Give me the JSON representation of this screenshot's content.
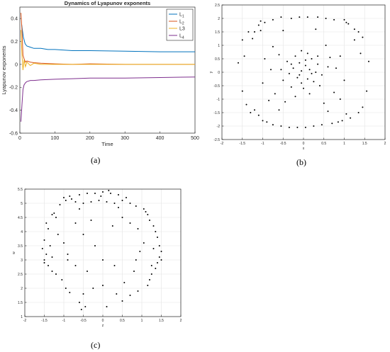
{
  "chart_data": [
    {
      "id": "a",
      "type": "line",
      "title": "Dynamics of Lyapunov exponents",
      "xlabel": "Time",
      "ylabel": "Lyapunov exponents",
      "xlim": [
        0,
        500
      ],
      "ylim": [
        -0.6,
        0.5
      ],
      "xticks": [
        0,
        100,
        200,
        300,
        400,
        500
      ],
      "yticks": [
        -0.6,
        -0.4,
        -0.2,
        0,
        0.2,
        0.4
      ],
      "grid": false,
      "legend_position": "top-right",
      "series": [
        {
          "name": "L",
          "sub": "1",
          "color": "#0072bd",
          "x": [
            5,
            10,
            15,
            20,
            30,
            40,
            60,
            80,
            100,
            150,
            200,
            300,
            400,
            500
          ],
          "y": [
            0.35,
            0.24,
            0.18,
            0.16,
            0.15,
            0.14,
            0.14,
            0.13,
            0.13,
            0.12,
            0.12,
            0.115,
            0.11,
            0.11
          ]
        },
        {
          "name": "L",
          "sub": "2",
          "color": "#d95319",
          "x": [
            3,
            6,
            9,
            12,
            16,
            20,
            30,
            40,
            60,
            100,
            150,
            200,
            300,
            400,
            500
          ],
          "y": [
            0.45,
            0.3,
            0.08,
            0.05,
            0.02,
            0.03,
            0.02,
            0.015,
            0.01,
            0.005,
            0.0,
            0.005,
            0.0,
            0.0,
            0.0
          ]
        },
        {
          "name": "L3",
          "sub": "",
          "color": "#edb120",
          "x": [
            3,
            6,
            9,
            12,
            16,
            20,
            30,
            40,
            60,
            100,
            150,
            200,
            300,
            400,
            500
          ],
          "y": [
            0.3,
            0.08,
            -0.05,
            0.04,
            -0.02,
            0.02,
            -0.01,
            0.01,
            0.0,
            0.0,
            0.0,
            0.0,
            0.0,
            0.0,
            0.0
          ]
        },
        {
          "name": "L",
          "sub": "4",
          "color": "#7e2f8e",
          "x": [
            3,
            6,
            9,
            12,
            16,
            20,
            30,
            40,
            60,
            100,
            150,
            200,
            300,
            400,
            500
          ],
          "y": [
            -0.5,
            -0.35,
            -0.22,
            -0.18,
            -0.16,
            -0.15,
            -0.14,
            -0.14,
            -0.135,
            -0.13,
            -0.125,
            -0.12,
            -0.12,
            -0.115,
            -0.11
          ]
        }
      ]
    },
    {
      "id": "b",
      "type": "scatter",
      "xlabel": "x",
      "ylabel": "y",
      "xlim": [
        -2,
        2
      ],
      "ylim": [
        -2.5,
        2.5
      ],
      "xticks": [
        -2,
        -1.5,
        -1,
        -0.5,
        0,
        0.5,
        1,
        1.5,
        2
      ],
      "yticks": [
        -2.5,
        -2,
        -1.5,
        -1,
        -0.5,
        0,
        0.5,
        1,
        1.5,
        2,
        2.5
      ],
      "grid": true,
      "points": [
        [
          -0.55,
          2.05
        ],
        [
          -0.3,
          2.0
        ],
        [
          -0.1,
          2.05
        ],
        [
          0.1,
          2.05
        ],
        [
          0.35,
          2.05
        ],
        [
          0.55,
          2.0
        ],
        [
          -0.75,
          1.95
        ],
        [
          0.75,
          1.95
        ],
        [
          -1.05,
          1.9
        ],
        [
          -0.95,
          1.85
        ],
        [
          -1.1,
          1.75
        ],
        [
          1.0,
          1.95
        ],
        [
          1.05,
          1.85
        ],
        [
          1.1,
          1.8
        ],
        [
          -1.2,
          1.5
        ],
        [
          -1.35,
          1.5
        ],
        [
          -1.05,
          1.55
        ],
        [
          -0.5,
          1.55
        ],
        [
          0.3,
          1.6
        ],
        [
          1.25,
          1.6
        ],
        [
          1.35,
          1.5
        ],
        [
          1.45,
          1.3
        ],
        [
          -1.5,
          1.2
        ],
        [
          -0.75,
          0.95
        ],
        [
          0.55,
          1.0
        ],
        [
          -1.6,
          0.35
        ],
        [
          1.6,
          0.4
        ],
        [
          -0.2,
          0.6
        ],
        [
          0.1,
          0.7
        ],
        [
          -0.05,
          0.8
        ],
        [
          0.2,
          0.5
        ],
        [
          -0.4,
          0.4
        ],
        [
          0.35,
          0.3
        ],
        [
          -0.1,
          0.35
        ],
        [
          0.05,
          0.25
        ],
        [
          -0.25,
          0.15
        ],
        [
          0.15,
          0.1
        ],
        [
          -0.05,
          0.05
        ],
        [
          0.3,
          0.0
        ],
        [
          -0.35,
          -0.05
        ],
        [
          0.45,
          -0.1
        ],
        [
          -0.15,
          -0.2
        ],
        [
          0.1,
          -0.25
        ],
        [
          -0.5,
          -0.3
        ],
        [
          0.25,
          -0.35
        ],
        [
          -0.05,
          -0.4
        ],
        [
          0.4,
          -0.5
        ],
        [
          -0.3,
          -0.55
        ],
        [
          0.0,
          -0.6
        ],
        [
          -0.8,
          0.1
        ],
        [
          0.8,
          0.15
        ],
        [
          -1.0,
          -0.4
        ],
        [
          1.0,
          -0.3
        ],
        [
          -1.5,
          -0.7
        ],
        [
          1.55,
          -0.7
        ],
        [
          -1.4,
          -1.2
        ],
        [
          1.45,
          -1.3
        ],
        [
          -1.3,
          -1.5
        ],
        [
          1.35,
          -1.5
        ],
        [
          -1.1,
          -1.6
        ],
        [
          1.15,
          -1.7
        ],
        [
          -1.0,
          -1.8
        ],
        [
          0.95,
          -1.8
        ],
        [
          -0.9,
          -1.85
        ],
        [
          0.85,
          -1.85
        ],
        [
          -0.75,
          -1.95
        ],
        [
          0.7,
          -1.9
        ],
        [
          -0.55,
          -2.0
        ],
        [
          -0.35,
          -2.05
        ],
        [
          -0.15,
          -2.05
        ],
        [
          0.05,
          -2.05
        ],
        [
          0.25,
          -2.0
        ],
        [
          0.45,
          -1.95
        ],
        [
          1.05,
          -1.55
        ],
        [
          -1.2,
          -1.4
        ],
        [
          0.6,
          -1.45
        ],
        [
          -0.6,
          -1.4
        ],
        [
          0.75,
          -0.75
        ],
        [
          -0.7,
          -0.8
        ],
        [
          1.25,
          1.2
        ],
        [
          -1.25,
          1.25
        ],
        [
          0.65,
          0.55
        ],
        [
          -0.6,
          0.65
        ],
        [
          0.9,
          0.6
        ],
        [
          -0.95,
          0.5
        ],
        [
          0.15,
          -0.8
        ],
        [
          -0.2,
          -0.9
        ],
        [
          0.5,
          -1.15
        ],
        [
          -0.45,
          -1.1
        ],
        [
          0.05,
          0.45
        ],
        [
          -0.1,
          -0.1
        ],
        [
          0.2,
          -0.05
        ],
        [
          -0.3,
          0.3
        ],
        [
          0.35,
          0.6
        ],
        [
          0.6,
          0.2
        ],
        [
          -0.55,
          0.1
        ],
        [
          0.9,
          -1.0
        ],
        [
          -0.85,
          -1.05
        ],
        [
          1.4,
          0.7
        ],
        [
          -1.45,
          0.6
        ]
      ]
    },
    {
      "id": "c",
      "type": "scatter",
      "xlabel": "z",
      "ylabel": "w",
      "xlim": [
        -2,
        2
      ],
      "ylim": [
        1,
        5.5
      ],
      "xticks": [
        -2,
        -1.5,
        -1,
        -0.5,
        0,
        0.5,
        1,
        1.5,
        2
      ],
      "yticks": [
        1,
        1.5,
        2,
        2.5,
        3,
        3.5,
        4,
        4.5,
        5,
        5.5
      ],
      "grid": true,
      "points": [
        [
          -1.0,
          5.2
        ],
        [
          -0.85,
          5.25
        ],
        [
          -0.6,
          5.3
        ],
        [
          -0.4,
          5.35
        ],
        [
          -0.2,
          5.35
        ],
        [
          0.0,
          5.4
        ],
        [
          0.2,
          5.35
        ],
        [
          0.4,
          5.3
        ],
        [
          -0.95,
          5.1
        ],
        [
          -0.7,
          5.05
        ],
        [
          -0.5,
          5.0
        ],
        [
          -0.3,
          5.05
        ],
        [
          -0.1,
          5.1
        ],
        [
          0.1,
          5.05
        ],
        [
          0.3,
          5.0
        ],
        [
          0.5,
          5.1
        ],
        [
          0.7,
          5.0
        ],
        [
          0.85,
          4.9
        ],
        [
          -1.1,
          4.95
        ],
        [
          -1.3,
          4.6
        ],
        [
          -1.2,
          4.5
        ],
        [
          -1.45,
          4.3
        ],
        [
          -1.4,
          4.1
        ],
        [
          1.05,
          4.8
        ],
        [
          1.15,
          4.6
        ],
        [
          1.2,
          4.4
        ],
        [
          1.3,
          4.2
        ],
        [
          1.35,
          4.0
        ],
        [
          -1.5,
          3.7
        ],
        [
          -1.55,
          3.4
        ],
        [
          -1.45,
          3.2
        ],
        [
          -1.5,
          3.0
        ],
        [
          -1.4,
          2.8
        ],
        [
          -1.3,
          2.6
        ],
        [
          1.4,
          3.8
        ],
        [
          1.45,
          3.5
        ],
        [
          1.5,
          3.3
        ],
        [
          1.45,
          3.1
        ],
        [
          1.4,
          2.9
        ],
        [
          1.35,
          2.7
        ],
        [
          1.25,
          2.5
        ],
        [
          1.2,
          2.3
        ],
        [
          1.15,
          2.1
        ],
        [
          -1.2,
          2.5
        ],
        [
          -1.05,
          2.3
        ],
        [
          -0.95,
          2.0
        ],
        [
          -0.85,
          1.85
        ],
        [
          -0.5,
          1.8
        ],
        [
          -0.6,
          1.5
        ],
        [
          -0.55,
          1.25
        ],
        [
          -0.45,
          1.35
        ],
        [
          0.1,
          1.35
        ],
        [
          0.5,
          1.55
        ],
        [
          0.7,
          1.75
        ],
        [
          0.9,
          1.9
        ],
        [
          -1.15,
          3.9
        ],
        [
          -1.0,
          3.6
        ],
        [
          -0.9,
          3.2
        ],
        [
          1.05,
          3.6
        ],
        [
          0.95,
          3.3
        ],
        [
          0.85,
          3.0
        ],
        [
          -0.7,
          4.3
        ],
        [
          -0.5,
          3.9
        ],
        [
          -0.3,
          4.4
        ],
        [
          0.25,
          4.2
        ],
        [
          0.5,
          4.5
        ],
        [
          0.7,
          4.3
        ],
        [
          -0.2,
          3.5
        ],
        [
          0.0,
          3.0
        ],
        [
          0.3,
          2.8
        ],
        [
          -0.4,
          2.6
        ],
        [
          0.55,
          2.2
        ],
        [
          -0.7,
          2.8
        ],
        [
          0.8,
          2.6
        ],
        [
          -1.35,
          3.5
        ],
        [
          1.3,
          3.4
        ],
        [
          -1.25,
          4.65
        ],
        [
          1.1,
          4.7
        ],
        [
          0.15,
          5.45
        ],
        [
          -0.05,
          5.25
        ],
        [
          0.6,
          5.2
        ],
        [
          -0.8,
          5.15
        ],
        [
          -1.5,
          2.9
        ],
        [
          1.5,
          3.0
        ],
        [
          0.0,
          2.1
        ],
        [
          -0.25,
          2.0
        ],
        [
          0.35,
          1.8
        ],
        [
          -0.9,
          3.0
        ],
        [
          0.9,
          4.1
        ],
        [
          -0.6,
          4.8
        ],
        [
          0.4,
          4.85
        ],
        [
          -1.3,
          3.1
        ],
        [
          1.25,
          2.8
        ]
      ]
    }
  ],
  "captions": [
    "(a)",
    "(b)",
    "(c)"
  ]
}
